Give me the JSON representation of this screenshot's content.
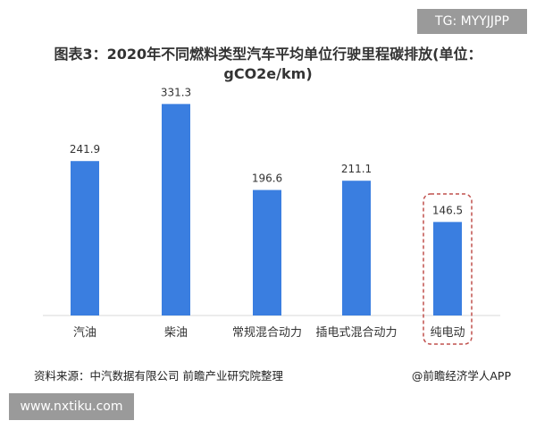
{
  "watermark_top_right": "TG: MYYJJPP",
  "watermark_bottom_left": "www.nxtiku.com",
  "source": "资料来源：中汽数据有限公司 前瞻产业研究院整理",
  "credit": "@前瞻经济学人APP",
  "colors": {
    "bar": "#3a7ee0",
    "highlight_border": "#c0504d",
    "axis": "#d9d9d9"
  },
  "chart_data": {
    "type": "bar",
    "title": "图表3：2020年不同燃料类型汽车平均单位行驶里程碳排放(单位：gCO2e/km)",
    "categories": [
      "汽油",
      "柴油",
      "常规混合动力",
      "插电式混合动力",
      "纯电动"
    ],
    "values": [
      241.9,
      331.3,
      196.6,
      211.1,
      146.5
    ],
    "data_labels": [
      "241.9",
      "331.3",
      "196.6",
      "211.1",
      "146.5"
    ],
    "highlighted_category": "纯电动",
    "ylim": [
      0,
      350
    ],
    "grid": false,
    "xlabel": "",
    "ylabel": ""
  }
}
